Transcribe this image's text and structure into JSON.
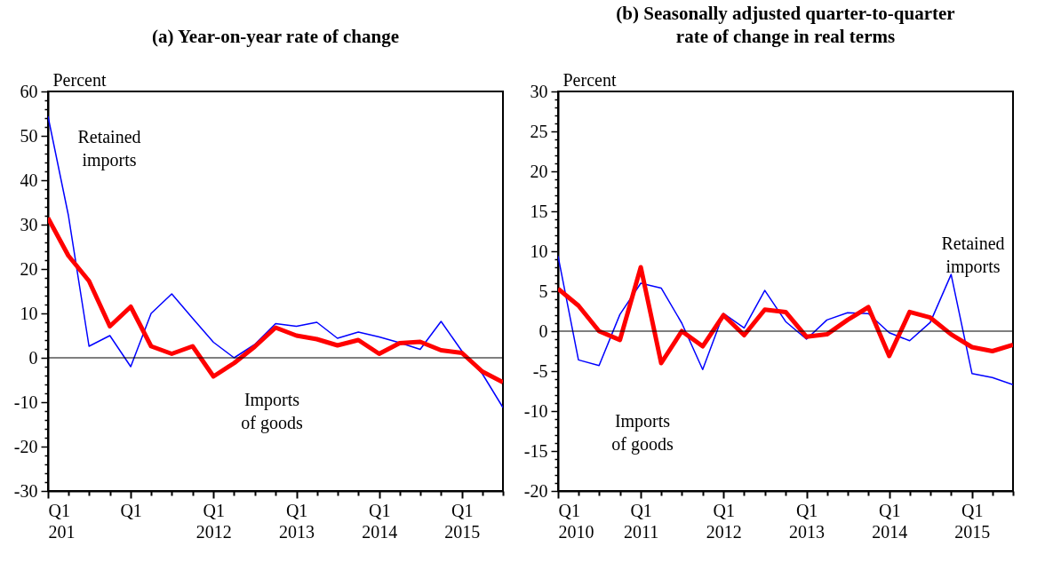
{
  "chart_data": [
    {
      "type": "line",
      "title": "(a) Year-on-year rate of change",
      "ylabel": "Percent",
      "x": [
        "2010-01",
        "2010-04",
        "2010-07",
        "2010-10",
        "2011-01",
        "2011-04",
        "2011-07",
        "2011-10",
        "2012-01",
        "2012-04",
        "2012-07",
        "2012-10",
        "2013-01",
        "2013-04",
        "2013-07",
        "2013-10",
        "2014-01",
        "2014-04",
        "2014-07",
        "2014-10",
        "2015-01",
        "2015-04",
        "2015-07"
      ],
      "xlim": [
        "2010-01",
        "2015-07"
      ],
      "xticks": [
        {
          "value": "2010-01",
          "label": "Q1 201"
        },
        {
          "value": "2010-04",
          "label": null
        },
        {
          "value": "2010-07",
          "label": null
        },
        {
          "value": "2010-10",
          "label": null
        },
        {
          "value": "2011-01",
          "label": "Q1"
        },
        {
          "value": "2011-04",
          "label": null
        },
        {
          "value": "2011-07",
          "label": null
        },
        {
          "value": "2011-10",
          "label": null
        },
        {
          "value": "2012-01",
          "label": "Q1 2012"
        },
        {
          "value": "2012-04",
          "label": null
        },
        {
          "value": "2012-07",
          "label": null
        },
        {
          "value": "2012-10",
          "label": null
        },
        {
          "value": "2013-01",
          "label": "Q1 2013"
        },
        {
          "value": "2013-04",
          "label": null
        },
        {
          "value": "2013-07",
          "label": null
        },
        {
          "value": "2013-10",
          "label": null
        },
        {
          "value": "2014-01",
          "label": "Q1 2014"
        },
        {
          "value": "2014-04",
          "label": null
        },
        {
          "value": "2014-07",
          "label": null
        },
        {
          "value": "2014-10",
          "label": null
        },
        {
          "value": "2015-01",
          "label": "Q1 2015"
        },
        {
          "value": "2015-04",
          "label": null
        },
        {
          "value": "2015-07",
          "label": null
        }
      ],
      "series": [
        {
          "name": "Retained imports",
          "color": "#0000ff",
          "values": [
            54.4,
            32.1,
            2.6,
            5.0,
            -2.0,
            10.0,
            14.4,
            8.9,
            3.5,
            0.0,
            3.0,
            7.7,
            7.1,
            8.0,
            4.4,
            5.8,
            4.7,
            3.4,
            1.9,
            8.2,
            1.5,
            -3.6,
            -11.2
          ]
        },
        {
          "name": "Imports of goods",
          "color": "#ff0000",
          "values": [
            31.5,
            23.0,
            17.3,
            7.1,
            11.5,
            2.6,
            0.9,
            2.6,
            -4.2,
            -1.2,
            2.5,
            6.8,
            5.0,
            4.2,
            2.8,
            4.0,
            0.9,
            3.3,
            3.6,
            1.7,
            1.1,
            -3.1,
            -5.5
          ]
        }
      ],
      "ylim": [
        -30,
        60
      ],
      "yticks": [
        -30,
        {
          "value": -28,
          "label": null
        },
        {
          "value": -26,
          "label": null
        },
        {
          "value": -24,
          "label": null
        },
        {
          "value": -22,
          "label": null
        },
        -20,
        {
          "value": -18,
          "label": null
        },
        {
          "value": -16,
          "label": null
        },
        {
          "value": -14,
          "label": null
        },
        {
          "value": -12,
          "label": null
        },
        -10,
        {
          "value": -8,
          "label": null
        },
        {
          "value": -6,
          "label": null
        },
        {
          "value": -4,
          "label": null
        },
        {
          "value": -2,
          "label": null
        },
        0,
        {
          "value": 2,
          "label": null
        },
        {
          "value": 4,
          "label": null
        },
        {
          "value": 6,
          "label": null
        },
        {
          "value": 8,
          "label": null
        },
        10,
        {
          "value": 12,
          "label": null
        },
        {
          "value": 14,
          "label": null
        },
        {
          "value": 16,
          "label": null
        },
        {
          "value": 18,
          "label": null
        },
        20,
        {
          "value": 22,
          "label": null
        },
        {
          "value": 24,
          "label": null
        },
        {
          "value": 26,
          "label": null
        },
        {
          "value": 28,
          "label": null
        },
        30,
        {
          "value": 32,
          "label": null
        },
        {
          "value": 34,
          "label": null
        },
        {
          "value": 36,
          "label": null
        },
        {
          "value": 38,
          "label": null
        },
        40,
        {
          "value": 42,
          "label": null
        },
        {
          "value": 44,
          "label": null
        },
        {
          "value": 46,
          "label": null
        },
        {
          "value": 48,
          "label": null
        },
        50,
        {
          "value": 52,
          "label": null
        },
        {
          "value": 54,
          "label": null
        },
        {
          "value": 56,
          "label": null
        },
        {
          "value": 58,
          "label": null
        },
        60
      ],
      "ref_lines": [
        {
          "axis": "y",
          "value": 0,
          "color": "#000000"
        }
      ]
    },
    {
      "type": "line",
      "title": "(b) Seasonally adjusted quarter-to-quarter rate of change in real terms",
      "ylabel": "Percent",
      "x": [
        "2010-01",
        "2010-04",
        "2010-07",
        "2010-10",
        "2011-01",
        "2011-04",
        "2011-07",
        "2011-10",
        "2012-01",
        "2012-04",
        "2012-07",
        "2012-10",
        "2013-01",
        "2013-04",
        "2013-07",
        "2013-10",
        "2014-01",
        "2014-04",
        "2014-07",
        "2014-10",
        "2015-01",
        "2015-04",
        "2015-07"
      ],
      "xlim": [
        "2010-01",
        "2015-07"
      ],
      "xticks": [
        {
          "value": "2010-01",
          "label": "Q1 2010"
        },
        {
          "value": "2010-04",
          "label": null
        },
        {
          "value": "2010-07",
          "label": null
        },
        {
          "value": "2010-10",
          "label": null
        },
        {
          "value": "2011-01",
          "label": "Q1 2011"
        },
        {
          "value": "2011-04",
          "label": null
        },
        {
          "value": "2011-07",
          "label": null
        },
        {
          "value": "2011-10",
          "label": null
        },
        {
          "value": "2012-01",
          "label": "Q1 2012"
        },
        {
          "value": "2012-04",
          "label": null
        },
        {
          "value": "2012-07",
          "label": null
        },
        {
          "value": "2012-10",
          "label": null
        },
        {
          "value": "2013-01",
          "label": "Q1 2013"
        },
        {
          "value": "2013-04",
          "label": null
        },
        {
          "value": "2013-07",
          "label": null
        },
        {
          "value": "2013-10",
          "label": null
        },
        {
          "value": "2014-01",
          "label": "Q1 2014"
        },
        {
          "value": "2014-04",
          "label": null
        },
        {
          "value": "2014-07",
          "label": null
        },
        {
          "value": "2014-10",
          "label": null
        },
        {
          "value": "2015-01",
          "label": "Q1 2015"
        },
        {
          "value": "2015-04",
          "label": null
        },
        {
          "value": "2015-07",
          "label": null
        }
      ],
      "series": [
        {
          "name": "Retained imports",
          "color": "#0000ff",
          "values": [
            9.4,
            -3.6,
            -4.3,
            2.1,
            6.0,
            5.4,
            1.0,
            -4.8,
            2.2,
            0.4,
            5.1,
            1.2,
            -1.0,
            1.4,
            2.3,
            2.2,
            -0.2,
            -1.2,
            1.1,
            7.1,
            -5.3,
            -5.8,
            -6.7
          ]
        },
        {
          "name": "Imports of goods",
          "color": "#ff0000",
          "values": [
            5.3,
            3.2,
            0.0,
            -1.1,
            8.0,
            -4.0,
            0.0,
            -1.9,
            2.0,
            -0.5,
            2.7,
            2.4,
            -0.7,
            -0.4,
            1.4,
            3.0,
            -3.1,
            2.4,
            1.7,
            -0.4,
            -2.0,
            -2.5,
            -1.7
          ]
        }
      ],
      "ylim": [
        -20,
        30
      ],
      "yticks": [
        -20,
        {
          "value": -19,
          "label": null
        },
        {
          "value": -18,
          "label": null
        },
        {
          "value": -17,
          "label": null
        },
        {
          "value": -16,
          "label": null
        },
        -15,
        {
          "value": -14,
          "label": null
        },
        {
          "value": -13,
          "label": null
        },
        {
          "value": -12,
          "label": null
        },
        {
          "value": -11,
          "label": null
        },
        -10,
        {
          "value": -9,
          "label": null
        },
        {
          "value": -8,
          "label": null
        },
        {
          "value": -7,
          "label": null
        },
        {
          "value": -6,
          "label": null
        },
        -5,
        {
          "value": -4,
          "label": null
        },
        {
          "value": -3,
          "label": null
        },
        {
          "value": -2,
          "label": null
        },
        {
          "value": -1,
          "label": null
        },
        0,
        {
          "value": 1,
          "label": null
        },
        {
          "value": 2,
          "label": null
        },
        {
          "value": 3,
          "label": null
        },
        {
          "value": 4,
          "label": null
        },
        5,
        {
          "value": 6,
          "label": null
        },
        {
          "value": 7,
          "label": null
        },
        {
          "value": 8,
          "label": null
        },
        {
          "value": 9,
          "label": null
        },
        10,
        {
          "value": 11,
          "label": null
        },
        {
          "value": 12,
          "label": null
        },
        {
          "value": 13,
          "label": null
        },
        {
          "value": 14,
          "label": null
        },
        15,
        {
          "value": 16,
          "label": null
        },
        {
          "value": 17,
          "label": null
        },
        {
          "value": 18,
          "label": null
        },
        {
          "value": 19,
          "label": null
        },
        20,
        {
          "value": 21,
          "label": null
        },
        {
          "value": 22,
          "label": null
        },
        {
          "value": 23,
          "label": null
        },
        {
          "value": 24,
          "label": null
        },
        25,
        {
          "value": 26,
          "label": null
        },
        {
          "value": 27,
          "label": null
        },
        {
          "value": 28,
          "label": null
        },
        {
          "value": 29,
          "label": null
        },
        30
      ],
      "ref_lines": [
        {
          "axis": "y",
          "value": 0,
          "color": "#000000"
        }
      ]
    }
  ]
}
